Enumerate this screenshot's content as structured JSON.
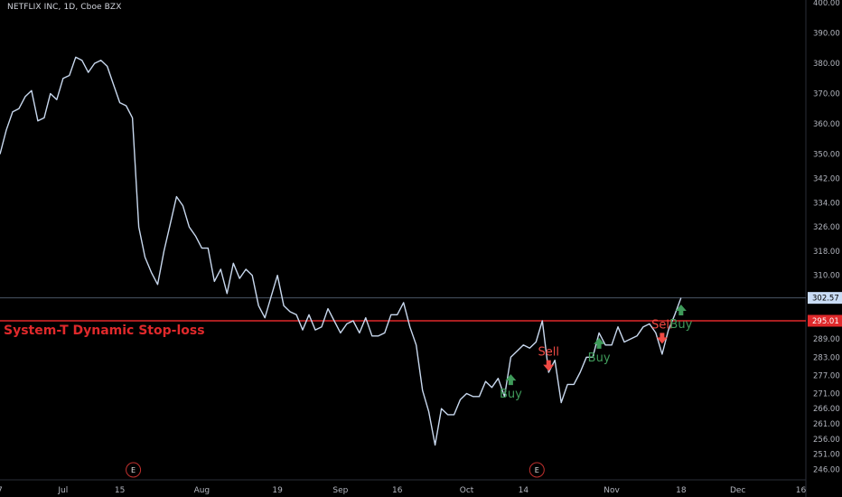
{
  "header": {
    "title": "NETFLIX INC, 1D, Cboe BZX"
  },
  "colors": {
    "background": "#000000",
    "line": "#c8d8ee",
    "stop_line": "#e0292b",
    "buy": "#3f9a5a",
    "sell": "#ef4a44",
    "last_price_tag": "#c9dcf5",
    "stop_tag": "#e0292b",
    "axis_text": "#b2b5be",
    "earnings": "#c0302e"
  },
  "chart_data": {
    "type": "line",
    "ylim": [
      244,
      400
    ],
    "y_ticks": [
      "400.00",
      "390.00",
      "380.00",
      "370.00",
      "360.00",
      "350.00",
      "342.00",
      "334.00",
      "326.00",
      "318.00",
      "310.00",
      "302.57",
      "295.01",
      "289.00",
      "283.00",
      "277.00",
      "271.00",
      "266.00",
      "261.00",
      "256.00",
      "251.00",
      "246.00"
    ],
    "y_tick_values": [
      400,
      390,
      380,
      370,
      360,
      350,
      342,
      334,
      326,
      318,
      310,
      302.57,
      295.01,
      289,
      283,
      277,
      271,
      266,
      261,
      256,
      251,
      246
    ],
    "x_ticks": [
      {
        "label": "7",
        "i": 0
      },
      {
        "label": "Jul",
        "i": 10
      },
      {
        "label": "15",
        "i": 19
      },
      {
        "label": "Aug",
        "i": 32
      },
      {
        "label": "19",
        "i": 44
      },
      {
        "label": "Sep",
        "i": 54
      },
      {
        "label": "16",
        "i": 63
      },
      {
        "label": "Oct",
        "i": 74
      },
      {
        "label": "14",
        "i": 83
      },
      {
        "label": "Nov",
        "i": 97
      },
      {
        "label": "18",
        "i": 108
      },
      {
        "label": "Dec",
        "i": 117
      },
      {
        "label": "16",
        "i": 127
      }
    ],
    "x_max_index": 133,
    "series": [
      {
        "values": [
          350,
          358,
          364,
          365,
          369,
          371,
          361,
          362,
          370,
          368,
          375,
          376,
          382,
          381,
          377,
          380,
          381,
          379,
          373,
          367,
          366,
          362,
          326,
          316,
          311,
          307,
          318,
          327,
          336,
          333,
          326,
          323,
          319,
          319,
          308,
          312,
          304,
          314,
          309,
          312,
          310,
          300,
          296,
          303,
          310,
          300,
          298,
          297,
          292,
          297,
          292,
          293,
          299,
          295,
          291,
          294,
          295,
          291,
          296,
          290,
          290,
          291,
          297,
          297,
          301,
          293,
          287,
          272,
          265,
          254,
          266,
          264,
          264,
          269,
          271,
          270,
          270,
          275,
          273,
          276,
          270,
          283,
          285,
          287,
          286,
          288,
          295,
          278,
          282,
          268,
          274,
          274,
          278,
          283,
          283,
          291,
          287,
          287,
          293,
          288,
          289,
          290,
          293,
          294,
          291,
          284,
          292,
          297,
          302.57
        ]
      }
    ],
    "signals": [
      {
        "type": "Buy",
        "index": 81,
        "price": 275
      },
      {
        "type": "Sell",
        "index": 87,
        "price": 282
      },
      {
        "type": "Buy",
        "index": 95,
        "price": 287
      },
      {
        "type": "Sell",
        "index": 105,
        "price": 291
      },
      {
        "type": "Buy",
        "index": 108,
        "price": 298
      }
    ],
    "stop_loss": {
      "value": 295.01,
      "label": "System-T Dynamic Stop-loss"
    },
    "last_price": {
      "value": 302.57,
      "label": "302.57"
    },
    "stop_tag": {
      "label": "295.01"
    },
    "earnings_markers": [
      {
        "label": "E",
        "i": 21
      },
      {
        "label": "E",
        "i": 85
      }
    ]
  }
}
